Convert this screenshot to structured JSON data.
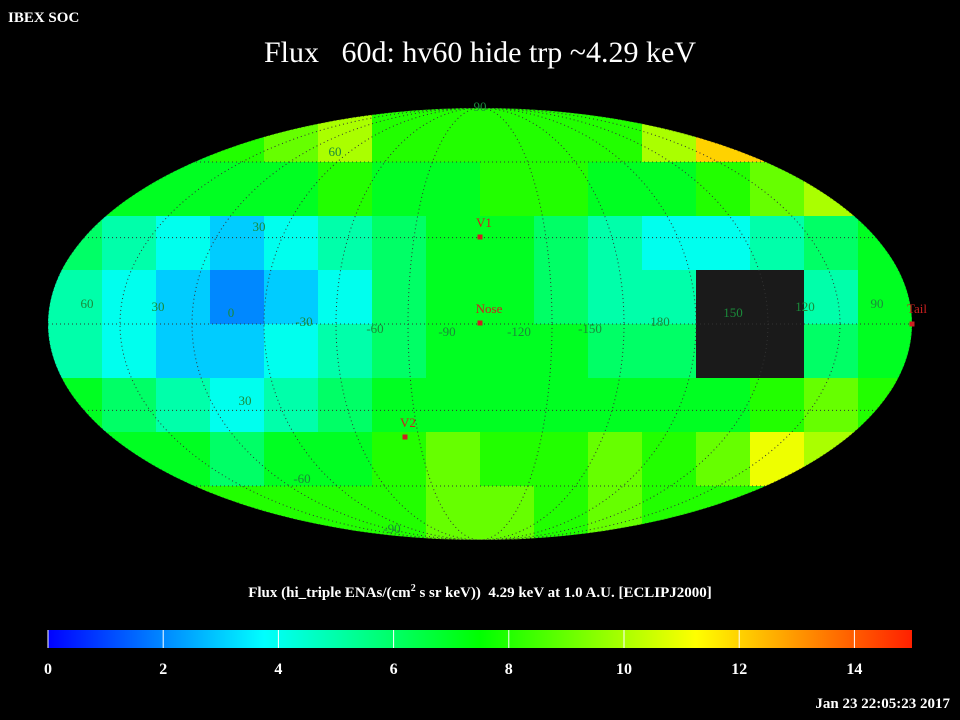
{
  "header": "IBEX SOC",
  "timestamp": "Jan 23 22:05:23 2017",
  "chart_data": {
    "type": "heatmap",
    "title": "Flux   60d: hv60 hide trp ~4.29 keV",
    "projection": "mollweide",
    "values": [
      [
        7,
        7,
        7,
        8,
        9,
        10,
        8,
        8,
        8,
        8,
        8,
        10,
        12,
        12,
        9,
        8
      ],
      [
        7,
        7,
        7,
        7,
        7,
        8,
        7,
        7,
        8,
        8,
        7,
        7,
        8,
        9,
        10,
        8
      ],
      [
        6,
        5,
        4,
        3,
        4,
        5,
        6,
        7,
        7,
        6,
        5,
        4,
        4,
        5,
        6,
        7
      ],
      [
        5,
        4,
        3,
        2,
        3,
        4,
        6,
        7,
        7,
        6,
        5,
        5,
        null,
        null,
        5,
        7
      ],
      [
        5,
        4,
        3,
        3,
        4,
        5,
        6,
        7,
        7,
        7,
        6,
        6,
        null,
        null,
        6,
        7
      ],
      [
        7,
        6,
        5,
        4,
        5,
        6,
        7,
        7,
        7,
        7,
        7,
        7,
        7,
        8,
        9,
        8
      ],
      [
        8,
        7,
        7,
        6,
        7,
        7,
        8,
        9,
        8,
        8,
        9,
        8,
        9,
        11,
        10,
        8
      ],
      [
        8,
        8,
        8,
        8,
        8,
        8,
        8,
        9,
        9,
        8,
        9,
        8,
        8,
        8,
        8,
        8
      ]
    ],
    "null_color": "#1a1a1a",
    "colorbar": {
      "label_parts": [
        "Flux (hi_triple ENAs/(cm",
        "2",
        " s sr keV))  4.29 keV at 1.0 A.U. [ECLIPJ2000]"
      ],
      "clim": [
        0,
        15
      ],
      "ticks": [
        0,
        2,
        4,
        6,
        8,
        10,
        12,
        14
      ],
      "colors": [
        "#0000ff",
        "#00ffff",
        "#00ff00",
        "#ffff00",
        "#ff2000"
      ]
    },
    "graticule_labels": [
      "60",
      "30",
      "0",
      "-30",
      "-60",
      "-90",
      "-120",
      "-150",
      "180",
      "150",
      "120",
      "90",
      "90",
      "60",
      "30",
      "30",
      "-60",
      "-90"
    ],
    "markers": [
      {
        "label": "V1"
      },
      {
        "label": "Nose"
      },
      {
        "label": "V2"
      },
      {
        "label": "Tail"
      }
    ],
    "marker_color": "#cc2020"
  }
}
